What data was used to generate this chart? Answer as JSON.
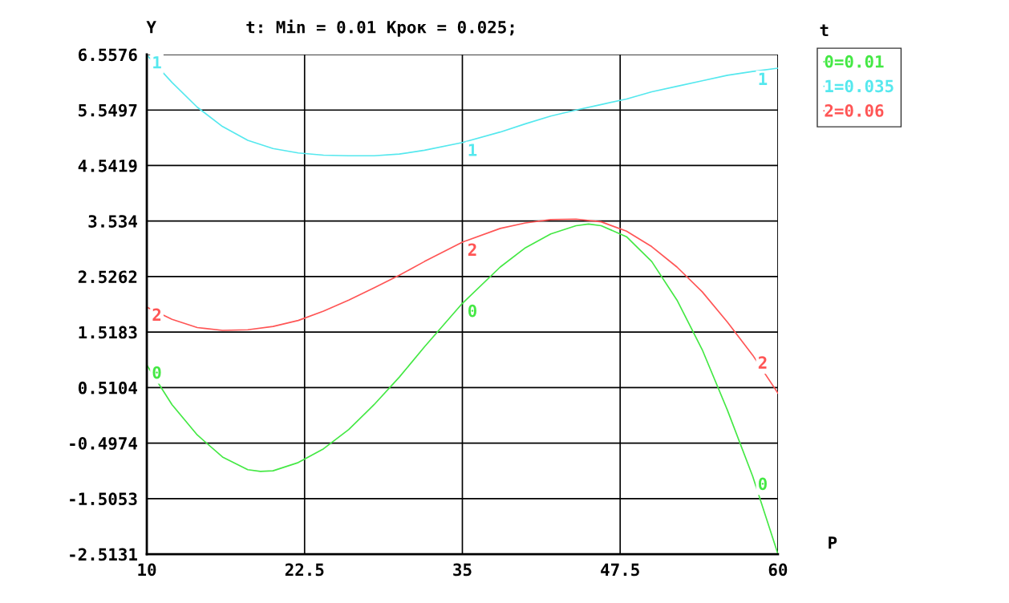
{
  "chart_data": {
    "type": "line",
    "title": "t: Min = 0.01 Крок = 0.025;",
    "xlabel": "P",
    "ylabel": "Y",
    "legend_title": "t",
    "legend": "top right",
    "grid": true,
    "xlim": [
      10,
      60
    ],
    "xticks": [
      10,
      22.5,
      35,
      47.5,
      60
    ],
    "ylim": [
      -2.5131,
      6.5576
    ],
    "yticks": [
      -2.5131,
      -1.5053,
      -0.4974,
      0.5104,
      1.5183,
      2.5262,
      3.534,
      4.5419,
      5.5497,
      6.5576
    ],
    "series": [
      {
        "name": "0=0.01",
        "color": "#44e844",
        "x": [
          10,
          12,
          14,
          16,
          18,
          19,
          20,
          22,
          24,
          26,
          28,
          30,
          32,
          35,
          38,
          40,
          42,
          44,
          45,
          46,
          48,
          50,
          52,
          54,
          56,
          58,
          60
        ],
        "values": [
          0.92,
          0.2,
          -0.35,
          -0.75,
          -0.98,
          -1.01,
          -1.0,
          -0.85,
          -0.6,
          -0.25,
          0.2,
          0.7,
          1.25,
          2.04,
          2.7,
          3.05,
          3.3,
          3.45,
          3.48,
          3.45,
          3.25,
          2.8,
          2.1,
          1.2,
          0.1,
          -1.1,
          -2.51
        ]
      },
      {
        "name": "1=0.035",
        "color": "#55e8ee",
        "x": [
          10,
          12,
          14,
          16,
          18,
          20,
          22,
          24,
          26,
          28,
          30,
          32,
          35,
          38,
          40,
          42,
          44,
          46,
          48,
          50,
          52,
          54,
          56,
          58,
          60
        ],
        "values": [
          6.55,
          6.05,
          5.6,
          5.25,
          5.0,
          4.85,
          4.77,
          4.73,
          4.72,
          4.72,
          4.75,
          4.82,
          4.96,
          5.15,
          5.3,
          5.44,
          5.55,
          5.65,
          5.75,
          5.88,
          5.98,
          6.08,
          6.18,
          6.25,
          6.31
        ]
      },
      {
        "name": "2=0.06",
        "color": "#ff5555",
        "x": [
          10,
          12,
          14,
          16,
          18,
          20,
          22,
          24,
          26,
          28,
          30,
          32,
          35,
          38,
          40,
          42,
          44,
          46,
          48,
          50,
          52,
          54,
          56,
          58,
          60
        ],
        "values": [
          1.97,
          1.75,
          1.6,
          1.55,
          1.56,
          1.62,
          1.73,
          1.9,
          2.1,
          2.32,
          2.55,
          2.8,
          3.15,
          3.4,
          3.5,
          3.56,
          3.57,
          3.52,
          3.35,
          3.07,
          2.7,
          2.25,
          1.7,
          1.1,
          0.41
        ]
      }
    ],
    "annotations": [
      {
        "text": "0",
        "x": 10,
        "y": 0.92
      },
      {
        "text": "0",
        "x": 35,
        "y": 2.04
      },
      {
        "text": "0",
        "x": 58,
        "y": -1.1
      },
      {
        "text": "1",
        "x": 10,
        "y": 6.55
      },
      {
        "text": "1",
        "x": 35,
        "y": 4.96
      },
      {
        "text": "1",
        "x": 58,
        "y": 6.25
      },
      {
        "text": "2",
        "x": 10,
        "y": 1.97
      },
      {
        "text": "2",
        "x": 35,
        "y": 3.15
      },
      {
        "text": "2",
        "x": 58,
        "y": 1.1
      }
    ]
  }
}
